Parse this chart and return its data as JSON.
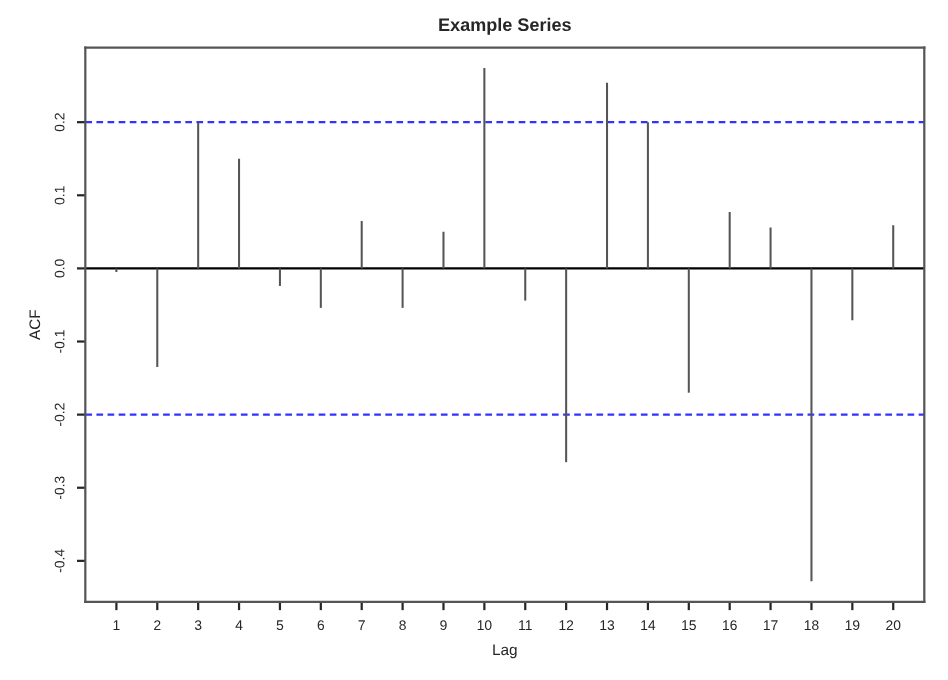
{
  "chart_data": {
    "type": "bar",
    "title": "Example Series",
    "xlabel": "Lag",
    "ylabel": "ACF",
    "x": [
      1,
      2,
      3,
      4,
      5,
      6,
      7,
      8,
      9,
      10,
      11,
      12,
      13,
      14,
      15,
      16,
      17,
      18,
      19,
      20
    ],
    "values": [
      -0.005,
      -0.135,
      0.2,
      0.15,
      -0.024,
      -0.054,
      0.065,
      -0.054,
      0.05,
      0.274,
      -0.044,
      -0.265,
      0.254,
      0.2,
      -0.17,
      0.077,
      0.056,
      -0.428,
      -0.071,
      0.059
    ],
    "color": "#555555",
    "xlim": [
      0.24,
      20.76
    ],
    "xticks": [
      1,
      2,
      3,
      4,
      5,
      6,
      7,
      8,
      9,
      10,
      11,
      12,
      13,
      14,
      15,
      16,
      17,
      18,
      19,
      20
    ],
    "ylim": [
      -0.456,
      0.302
    ],
    "yticks": [
      -0.4,
      -0.3,
      -0.2,
      -0.1,
      {
        "value": 0,
        "label": "0.0"
      },
      0.1,
      0.2
    ],
    "ref_lines": [
      {
        "axis": "y",
        "value": 0,
        "color": "#000000",
        "line_style": "solid"
      },
      {
        "axis": "y",
        "value": 0.2,
        "color": "#3333ff",
        "line_style": "dashed"
      },
      {
        "axis": "y",
        "value": -0.2,
        "color": "#3333ff",
        "line_style": "dashed"
      }
    ],
    "grid": false,
    "legend": false
  }
}
